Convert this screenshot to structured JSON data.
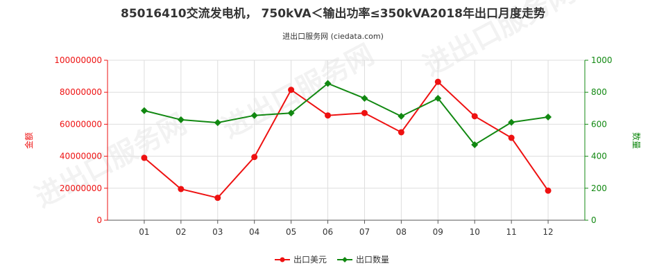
{
  "chart_data": {
    "type": "line",
    "title": "85016410交流发电机， 750kVA＜输出功率≤350kVA2018年出口月度走势",
    "subtitle": "进出口服务网 (ciedata.com)",
    "categories": [
      "01",
      "02",
      "03",
      "04",
      "05",
      "06",
      "07",
      "08",
      "09",
      "10",
      "11",
      "12"
    ],
    "y_left": {
      "label": "金额",
      "ylim": [
        0,
        100000000
      ],
      "ticks": [
        "0",
        "20000000",
        "40000000",
        "60000000",
        "80000000",
        "100000000"
      ]
    },
    "y_right": {
      "label": "数量",
      "ylim": [
        0,
        1000
      ],
      "ticks": [
        "0",
        "200",
        "400",
        "600",
        "800",
        "1000"
      ]
    },
    "series": [
      {
        "name": "出口美元",
        "axis": "left",
        "color": "#ee1111",
        "marker": "circle",
        "values": [
          39000000,
          19500000,
          14000000,
          39500000,
          81500000,
          65500000,
          67000000,
          55000000,
          86500000,
          65000000,
          51500000,
          18500000
        ]
      },
      {
        "name": "出口数量",
        "axis": "right",
        "color": "#118811",
        "marker": "diamond",
        "values": [
          685,
          628,
          610,
          655,
          670,
          855,
          762,
          650,
          762,
          472,
          612,
          645
        ]
      }
    ],
    "grid": true,
    "legend_position": "bottom"
  },
  "watermark": "进出口服务网"
}
